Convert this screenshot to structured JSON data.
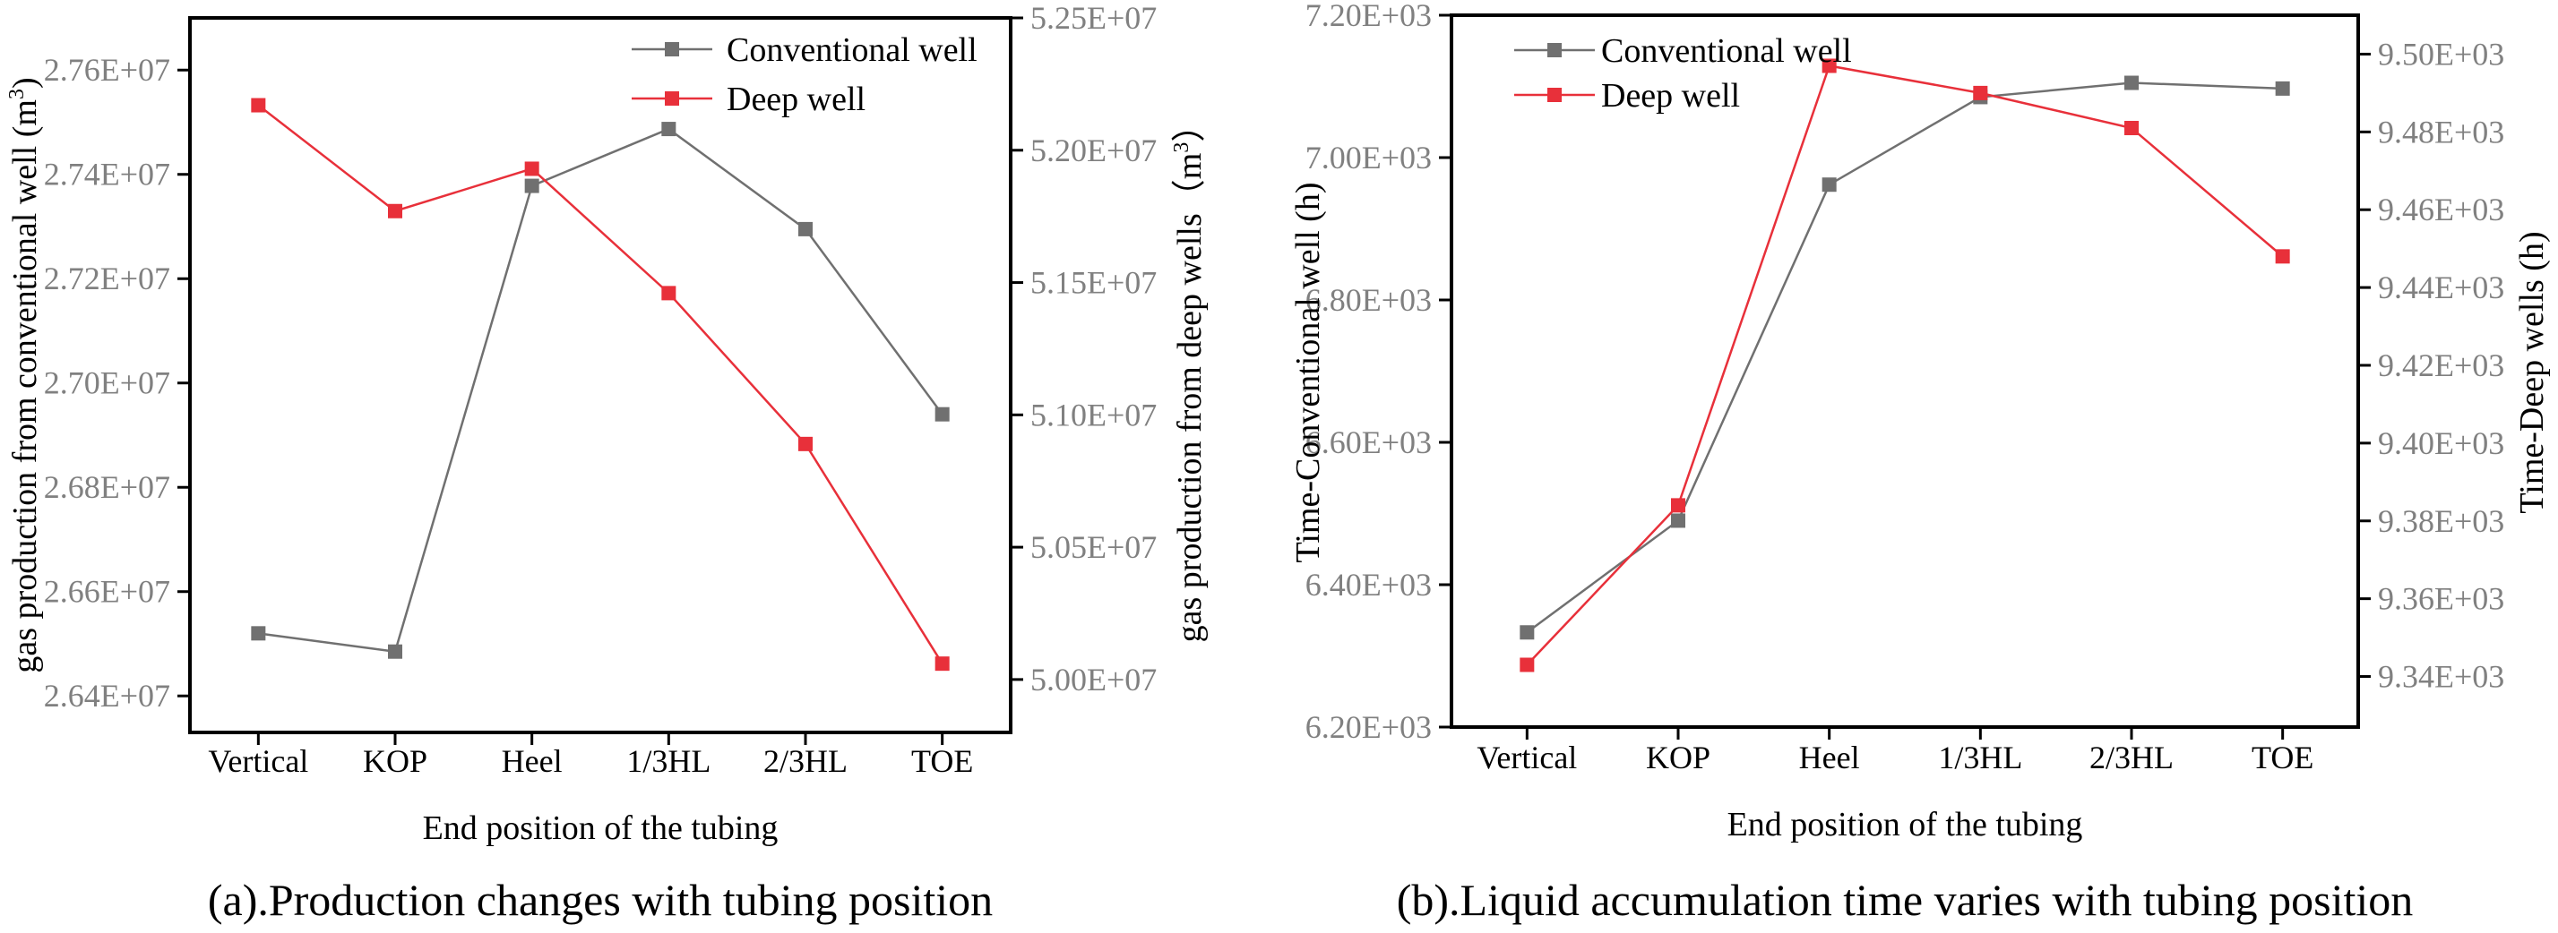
{
  "chart_data": [
    {
      "type": "line",
      "caption": "(a).Production changes with tubing position",
      "xlabel": "End position of the tubing",
      "categories": [
        "Vertical",
        "KOP",
        "Heel",
        "1/3HL",
        "2/3HL",
        "TOE"
      ],
      "ylabel_left": "gas production from conventional well (m³)",
      "ylabel_left_main": "gas production from conventional well (m",
      "ylabel_left_sup": "3",
      "ylabel_left_tail": ")",
      "ylabel_right": "gas production from deep wells（m³）",
      "ylabel_right_main": "gas production from deep wells（m",
      "ylabel_right_sup": "3",
      "ylabel_right_tail": "）",
      "ylim_left": [
        26330000,
        27700000
      ],
      "ylim_right": [
        49800000,
        52500000
      ],
      "yticks_left": [
        "2.64E+07",
        "2.66E+07",
        "2.68E+07",
        "2.70E+07",
        "2.72E+07",
        "2.74E+07",
        "2.76E+07"
      ],
      "yticks_left_values": [
        26400000,
        26600000,
        26800000,
        27000000,
        27200000,
        27400000,
        27600000
      ],
      "yticks_right": [
        "5.00E+07",
        "5.05E+07",
        "5.10E+07",
        "5.15E+07",
        "5.20E+07",
        "5.25E+07"
      ],
      "yticks_right_values": [
        50000000,
        50500000,
        51000000,
        51500000,
        52000000,
        52500000
      ],
      "legend_position": "top-right",
      "series": [
        {
          "name": "Conventional well",
          "axis": "left",
          "color": "#707070",
          "values": [
            26520000,
            26485000,
            27378000,
            27487000,
            27295000,
            26940000
          ]
        },
        {
          "name": "Deep well",
          "axis": "right",
          "color": "#e8303a",
          "values": [
            52170000,
            51770000,
            51930000,
            51460000,
            50890000,
            50060000
          ]
        }
      ]
    },
    {
      "type": "line",
      "caption": "(b).Liquid accumulation time varies with tubing position",
      "xlabel": "End position of the tubing",
      "categories": [
        "Vertical",
        "KOP",
        "Heel",
        "1/3HL",
        "2/3HL",
        "TOE"
      ],
      "ylabel_left": "Time-Conventional well (h)",
      "ylabel_right": "Time-Deep wells (h)",
      "ylim_left": [
        6200,
        7200
      ],
      "ylim_right": [
        9327,
        9510
      ],
      "yticks_left": [
        "6.20E+03",
        "6.40E+03",
        "6.60E+03",
        "6.80E+03",
        "7.00E+03",
        "7.20E+03"
      ],
      "yticks_left_values": [
        6200,
        6400,
        6600,
        6800,
        7000,
        7200
      ],
      "yticks_right": [
        "9.34E+03",
        "9.36E+03",
        "9.38E+03",
        "9.40E+03",
        "9.42E+03",
        "9.44E+03",
        "9.46E+03",
        "9.48E+03",
        "9.50E+03"
      ],
      "yticks_right_values": [
        9340,
        9360,
        9380,
        9400,
        9420,
        9440,
        9460,
        9480,
        9500
      ],
      "legend_position": "top-left",
      "series": [
        {
          "name": "Conventional well",
          "axis": "left",
          "color": "#707070",
          "values": [
            6333,
            6490,
            6962,
            7085,
            7105,
            7097
          ]
        },
        {
          "name": "Deep well",
          "axis": "right",
          "color": "#e8303a",
          "values": [
            9343,
            9384,
            9497,
            9490,
            9481,
            9448
          ]
        }
      ]
    }
  ]
}
